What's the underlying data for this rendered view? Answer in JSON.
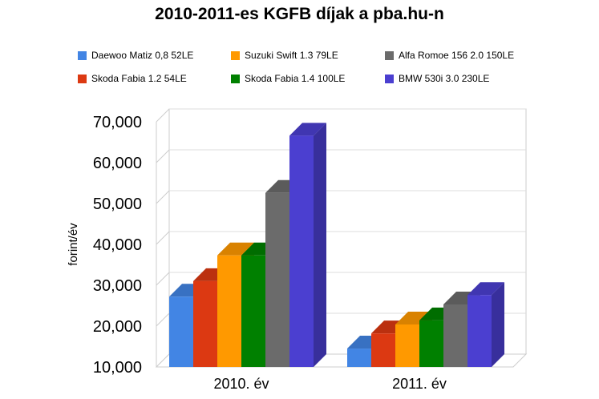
{
  "chart_data": {
    "type": "bar",
    "title": "2010-2011-es KGFB díjak a pba.hu-n",
    "xlabel": "",
    "ylabel": "forint/év",
    "ylim": [
      10000,
      70000
    ],
    "yticks": [
      "10,000",
      "20,000",
      "30,000",
      "40,000",
      "50,000",
      "60,000",
      "70,000"
    ],
    "categories": [
      "2010. év",
      "2011. év"
    ],
    "legend_position": "top",
    "series": [
      {
        "name": "Daewoo Matiz 0,8 52LE",
        "color": "#4285e4",
        "values": [
          27200,
          14500
        ]
      },
      {
        "name": "Suzuki Swift 1.3 79LE",
        "color": "#ff9900",
        "values": [
          37300,
          20400
        ]
      },
      {
        "name": "Alfa Romoe 156 2.0 150LE",
        "color": "#6b6b6b",
        "values": [
          52600,
          25300
        ]
      },
      {
        "name": "Skoda Fabia 1.2 54LE",
        "color": "#dc3912",
        "values": [
          31000,
          18200
        ]
      },
      {
        "name": "Skoda Fabia 1.4 100LE",
        "color": "#008000",
        "values": [
          37300,
          21400
        ]
      },
      {
        "name": "BMW 530i 3.0 230LE",
        "color": "#4b3fd0",
        "values": [
          66600,
          27600
        ]
      }
    ],
    "bar_order": [
      0,
      3,
      1,
      4,
      2,
      5
    ]
  }
}
